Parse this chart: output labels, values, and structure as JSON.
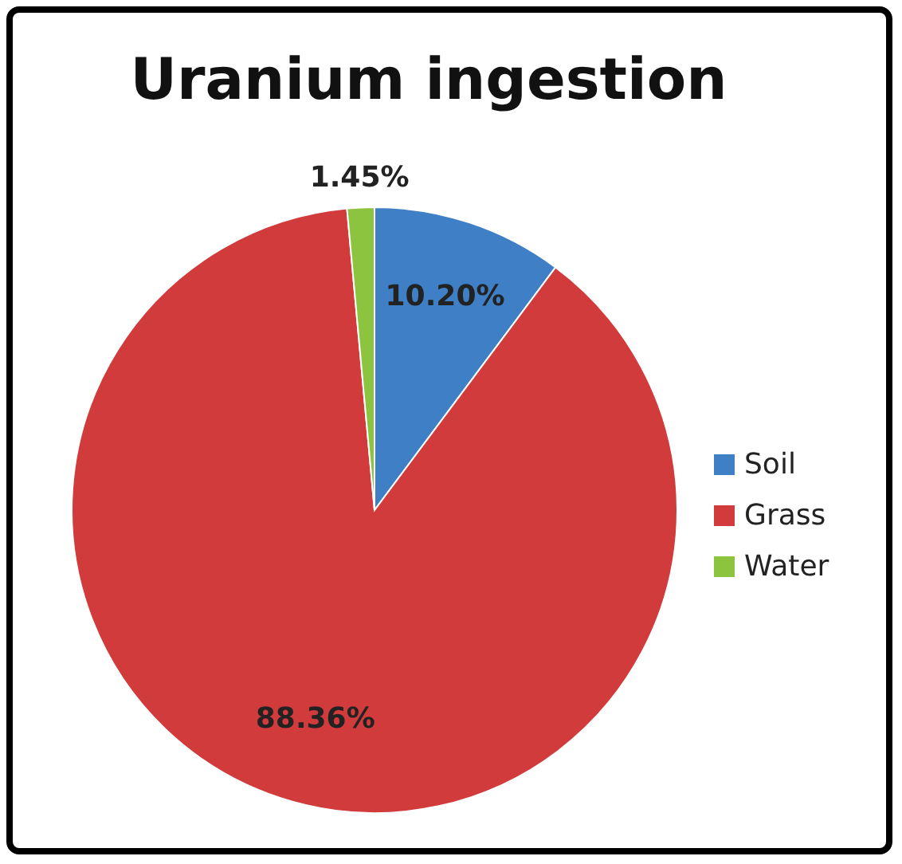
{
  "chart_data": {
    "type": "pie",
    "title": "Uranium ingestion",
    "categories": [
      "Soil",
      "Grass",
      "Water"
    ],
    "values": [
      10.2,
      88.36,
      1.45
    ],
    "value_labels": [
      "10.20%",
      "88.36%",
      "1.45%"
    ],
    "colors": [
      "#3f7fc6",
      "#d23b3b",
      "#8dc43f"
    ],
    "legend": "right"
  }
}
